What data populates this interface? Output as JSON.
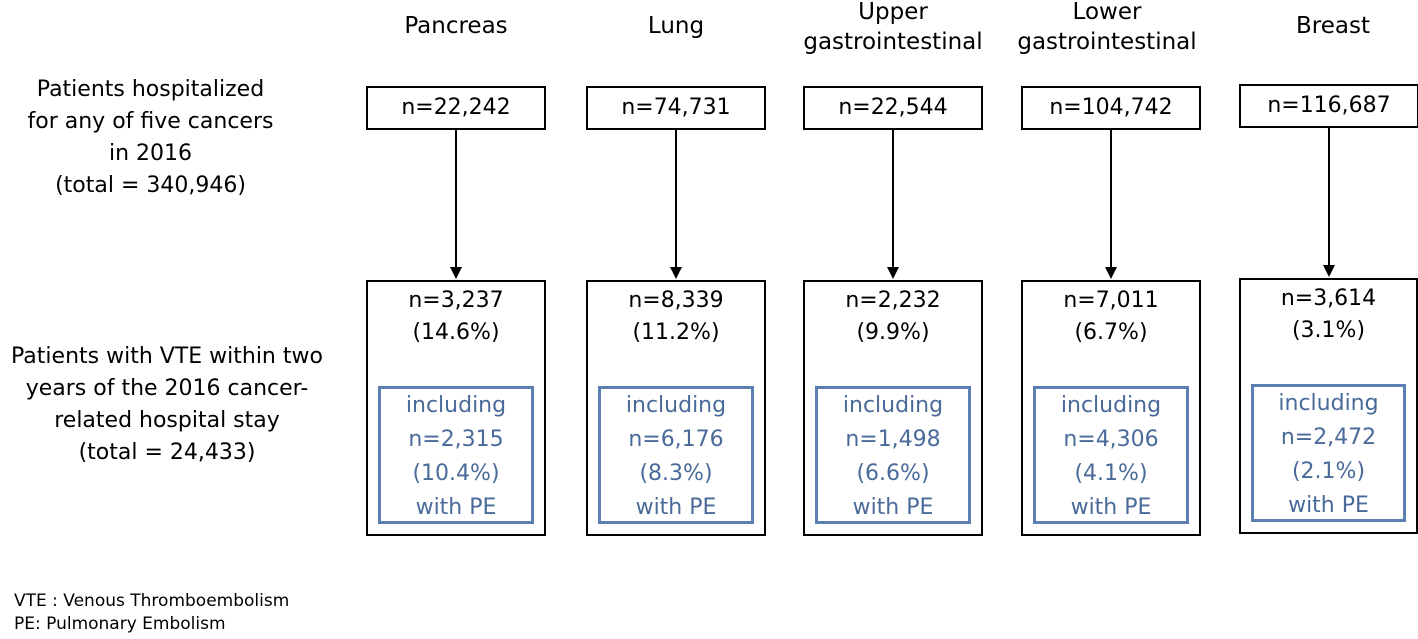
{
  "columns": [
    {
      "header": [
        "Pancreas"
      ],
      "n_total": "n=22,242",
      "vte_n": "n=3,237",
      "vte_pct": "(14.6%)",
      "pe": [
        "including",
        "n=2,315",
        "(10.4%)",
        "with PE"
      ]
    },
    {
      "header": [
        "Lung"
      ],
      "n_total": "n=74,731",
      "vte_n": "n=8,339",
      "vte_pct": "(11.2%)",
      "pe": [
        "including",
        "n=6,176",
        "(8.3%)",
        "with PE"
      ]
    },
    {
      "header": [
        "Upper",
        "gastrointestinal"
      ],
      "n_total": "n=22,544",
      "vte_n": "n=2,232",
      "vte_pct": "(9.9%)",
      "pe": [
        "including",
        "n=1,498",
        "(6.6%)",
        "with PE"
      ]
    },
    {
      "header": [
        "Lower",
        "gastrointestinal"
      ],
      "n_total": "n=104,742",
      "vte_n": "n=7,011",
      "vte_pct": "(6.7%)",
      "pe": [
        "including",
        "n=4,306",
        "(4.1%)",
        "with PE"
      ]
    },
    {
      "header": [
        "Breast"
      ],
      "n_total": "n=116,687",
      "vte_n": "n=3,614",
      "vte_pct": "(3.1%)",
      "pe": [
        "including",
        "n=2,472",
        "(2.1%)",
        "with PE"
      ]
    }
  ],
  "row_labels": {
    "hospitalized": [
      "Patients hospitalized",
      "for any of five cancers",
      "in 2016",
      "(total = 340,946)"
    ],
    "vte": [
      "Patients with VTE within two",
      "years of the 2016 cancer-",
      "related hospital stay",
      "(total = 24,433)"
    ]
  },
  "legend": [
    "VTE : Venous Thromboembolism",
    "PE: Pulmonary Embolism"
  ],
  "colors": {
    "pe_border": "#5b7fb3",
    "pe_text": "#4a6a9a",
    "box_border": "#000000"
  }
}
